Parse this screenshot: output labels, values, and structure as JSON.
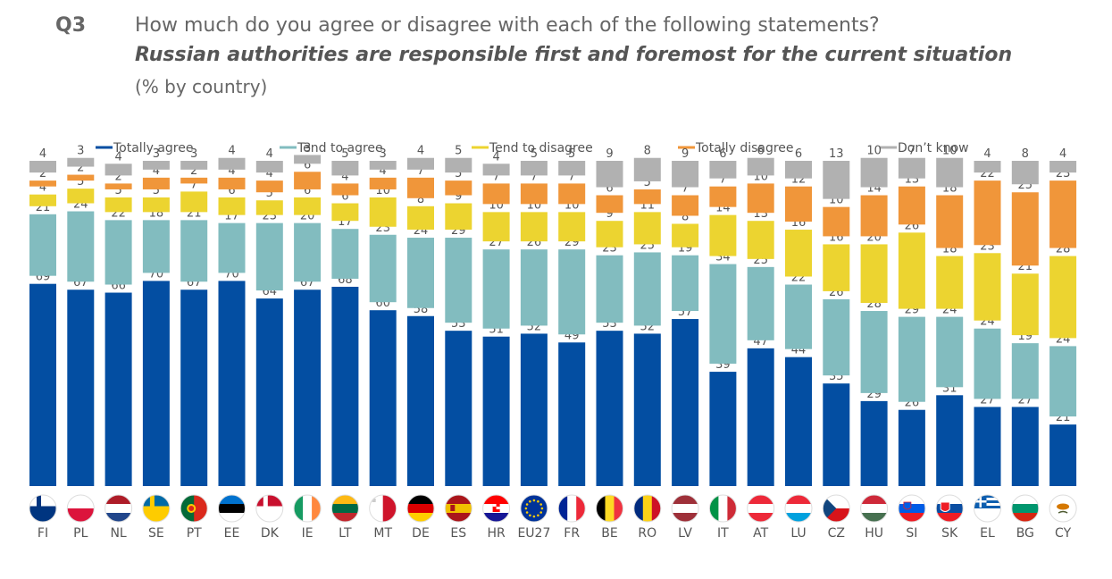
{
  "header": {
    "question_number": "Q3",
    "question": "How much do you agree or disagree with each of the following statements?",
    "statement": "Russian authorities are responsible first and foremost for the current situation",
    "note": "(% by country)"
  },
  "chart_data": {
    "type": "bar",
    "stacked": true,
    "ylim": [
      0,
      100
    ],
    "categories": [
      "FI",
      "PL",
      "NL",
      "SE",
      "PT",
      "EE",
      "DK",
      "IE",
      "LT",
      "MT",
      "DE",
      "ES",
      "HR",
      "EU27",
      "FR",
      "BE",
      "RO",
      "LV",
      "IT",
      "AT",
      "LU",
      "CZ",
      "HU",
      "SI",
      "SK",
      "EL",
      "BG",
      "CY"
    ],
    "series": [
      {
        "name": "Totally agree",
        "color": "#034ea2",
        "values": [
          69,
          67,
          66,
          70,
          67,
          70,
          64,
          67,
          68,
          60,
          58,
          53,
          51,
          52,
          49,
          53,
          52,
          57,
          39,
          47,
          44,
          35,
          29,
          26,
          31,
          27,
          27,
          21
        ]
      },
      {
        "name": "Tend to agree",
        "color": "#82bcbf",
        "values": [
          21,
          24,
          22,
          18,
          21,
          17,
          23,
          20,
          17,
          23,
          24,
          29,
          27,
          26,
          29,
          23,
          25,
          19,
          34,
          25,
          22,
          26,
          28,
          29,
          24,
          24,
          19,
          24
        ]
      },
      {
        "name": "Tend to disagree",
        "color": "#ecd430",
        "values": [
          4,
          5,
          5,
          5,
          7,
          6,
          5,
          6,
          6,
          10,
          8,
          9,
          10,
          10,
          10,
          9,
          11,
          8,
          14,
          13,
          16,
          16,
          20,
          26,
          18,
          23,
          21,
          28
        ]
      },
      {
        "name": "Totally disagree",
        "color": "#f0963a",
        "values": [
          2,
          2,
          2,
          4,
          2,
          4,
          4,
          6,
          4,
          4,
          7,
          5,
          7,
          7,
          7,
          6,
          5,
          7,
          7,
          10,
          12,
          10,
          14,
          13,
          18,
          22,
          25,
          23
        ]
      },
      {
        "name": "Don’t know",
        "color": "#b1b1b1",
        "values": [
          4,
          3,
          4,
          3,
          3,
          4,
          4,
          3,
          5,
          3,
          4,
          5,
          4,
          5,
          5,
          9,
          8,
          9,
          6,
          6,
          6,
          13,
          10,
          7,
          10,
          4,
          8,
          4
        ]
      }
    ],
    "legend_position": "top",
    "grid": false
  }
}
